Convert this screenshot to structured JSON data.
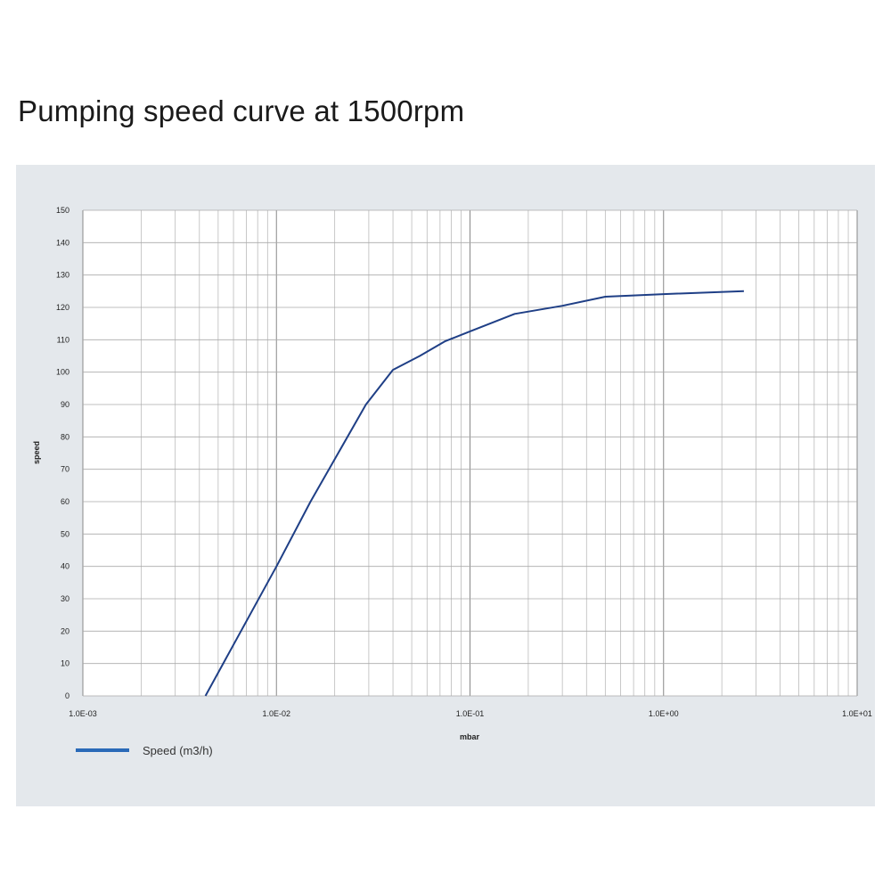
{
  "title": "Pumping speed curve at 1500rpm",
  "chart_data": {
    "type": "line",
    "title": "Pumping speed curve at 1500rpm",
    "xlabel": "mbar",
    "ylabel": "speed",
    "xscale": "log",
    "xlim": [
      0.001,
      10
    ],
    "ylim": [
      0,
      150
    ],
    "xticks": [
      "1.0E-03",
      "1.0E-02",
      "1.0E-01",
      "1.0E+00",
      "1.0E+01"
    ],
    "yticks": [
      "0",
      "10",
      "20",
      "30",
      "40",
      "50",
      "60",
      "70",
      "80",
      "90",
      "100",
      "110",
      "120",
      "130",
      "140",
      "150"
    ],
    "grid": true,
    "legend_position": "bottom-left",
    "series": [
      {
        "name": "Speed (m3/h)",
        "color": "#1f3f86",
        "legend_color": "#2a6ab8",
        "x": [
          0.0043,
          0.01,
          0.015,
          0.029,
          0.04,
          0.055,
          0.074,
          0.1,
          0.17,
          0.3,
          0.5,
          1.0,
          2.6
        ],
        "y": [
          0,
          40,
          60,
          90,
          100.7,
          105,
          109.5,
          112.6,
          118,
          120.5,
          123.3,
          124.1,
          125
        ]
      }
    ]
  }
}
